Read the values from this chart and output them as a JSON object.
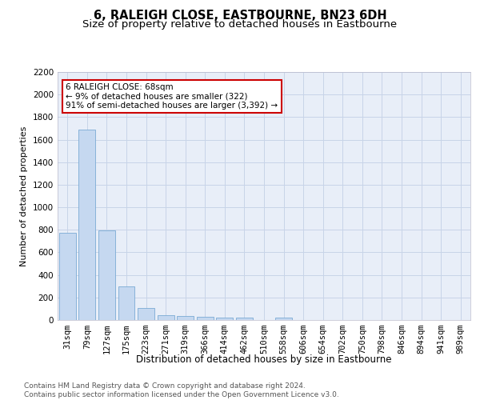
{
  "title": "6, RALEIGH CLOSE, EASTBOURNE, BN23 6DH",
  "subtitle": "Size of property relative to detached houses in Eastbourne",
  "xlabel": "Distribution of detached houses by size in Eastbourne",
  "ylabel": "Number of detached properties",
  "categories": [
    "31sqm",
    "79sqm",
    "127sqm",
    "175sqm",
    "223sqm",
    "271sqm",
    "319sqm",
    "366sqm",
    "414sqm",
    "462sqm",
    "510sqm",
    "558sqm",
    "606sqm",
    "654sqm",
    "702sqm",
    "750sqm",
    "798sqm",
    "846sqm",
    "894sqm",
    "941sqm",
    "989sqm"
  ],
  "values": [
    775,
    1690,
    795,
    300,
    110,
    45,
    35,
    28,
    22,
    22,
    0,
    22,
    0,
    0,
    0,
    0,
    0,
    0,
    0,
    0,
    0
  ],
  "bar_color": "#c5d8f0",
  "bar_edge_color": "#7aaad4",
  "annotation_text": "6 RALEIGH CLOSE: 68sqm\n← 9% of detached houses are smaller (322)\n91% of semi-detached houses are larger (3,392) →",
  "annotation_box_color": "#ffffff",
  "annotation_box_edge_color": "#cc0000",
  "ylim": [
    0,
    2200
  ],
  "yticks": [
    0,
    200,
    400,
    600,
    800,
    1000,
    1200,
    1400,
    1600,
    1800,
    2000,
    2200
  ],
  "grid_color": "#c8d4e8",
  "background_color": "#e8eef8",
  "footer_text": "Contains HM Land Registry data © Crown copyright and database right 2024.\nContains public sector information licensed under the Open Government Licence v3.0.",
  "title_fontsize": 10.5,
  "subtitle_fontsize": 9.5,
  "xlabel_fontsize": 8.5,
  "ylabel_fontsize": 8,
  "tick_fontsize": 7.5,
  "annotation_fontsize": 7.5,
  "footer_fontsize": 6.5
}
